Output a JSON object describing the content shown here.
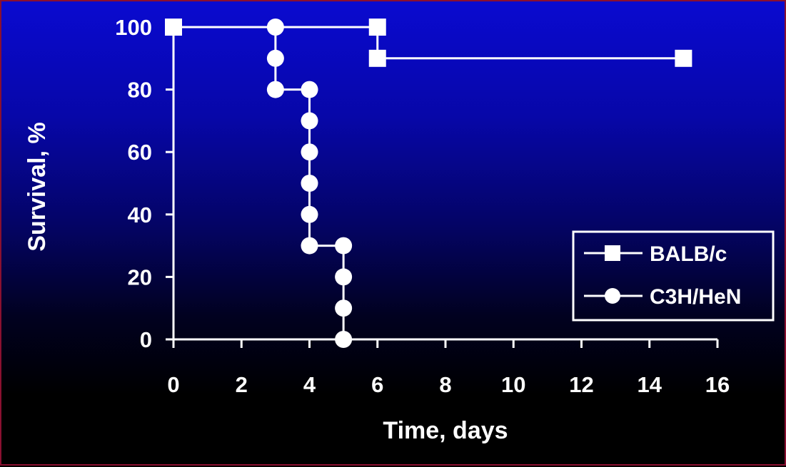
{
  "chart_data": {
    "type": "line",
    "step": true,
    "xlabel": "Time, days",
    "ylabel": "Survival, %",
    "xlim": [
      0,
      16
    ],
    "ylim": [
      0,
      100
    ],
    "x_ticks": [
      0,
      2,
      4,
      6,
      8,
      10,
      12,
      14,
      16
    ],
    "y_ticks": [
      0,
      20,
      40,
      60,
      80,
      100
    ],
    "grid": false,
    "legend_position": "bottom-right",
    "colors": {
      "line": "#ffffff",
      "background_top": "#0a0ad0",
      "background_bottom": "#000000"
    },
    "series": [
      {
        "name": "BALB/c",
        "marker": "square",
        "points": [
          [
            0,
            100
          ],
          [
            6,
            100
          ],
          [
            6,
            90
          ],
          [
            15,
            90
          ]
        ]
      },
      {
        "name": "C3H/HeN",
        "marker": "circle",
        "points": [
          [
            0,
            100
          ],
          [
            3,
            100
          ],
          [
            3,
            90
          ],
          [
            3,
            80
          ],
          [
            4,
            80
          ],
          [
            4,
            70
          ],
          [
            4,
            60
          ],
          [
            4,
            50
          ],
          [
            4,
            40
          ],
          [
            4,
            30
          ],
          [
            5,
            30
          ],
          [
            5,
            20
          ],
          [
            5,
            10
          ],
          [
            5,
            0
          ]
        ]
      }
    ]
  }
}
